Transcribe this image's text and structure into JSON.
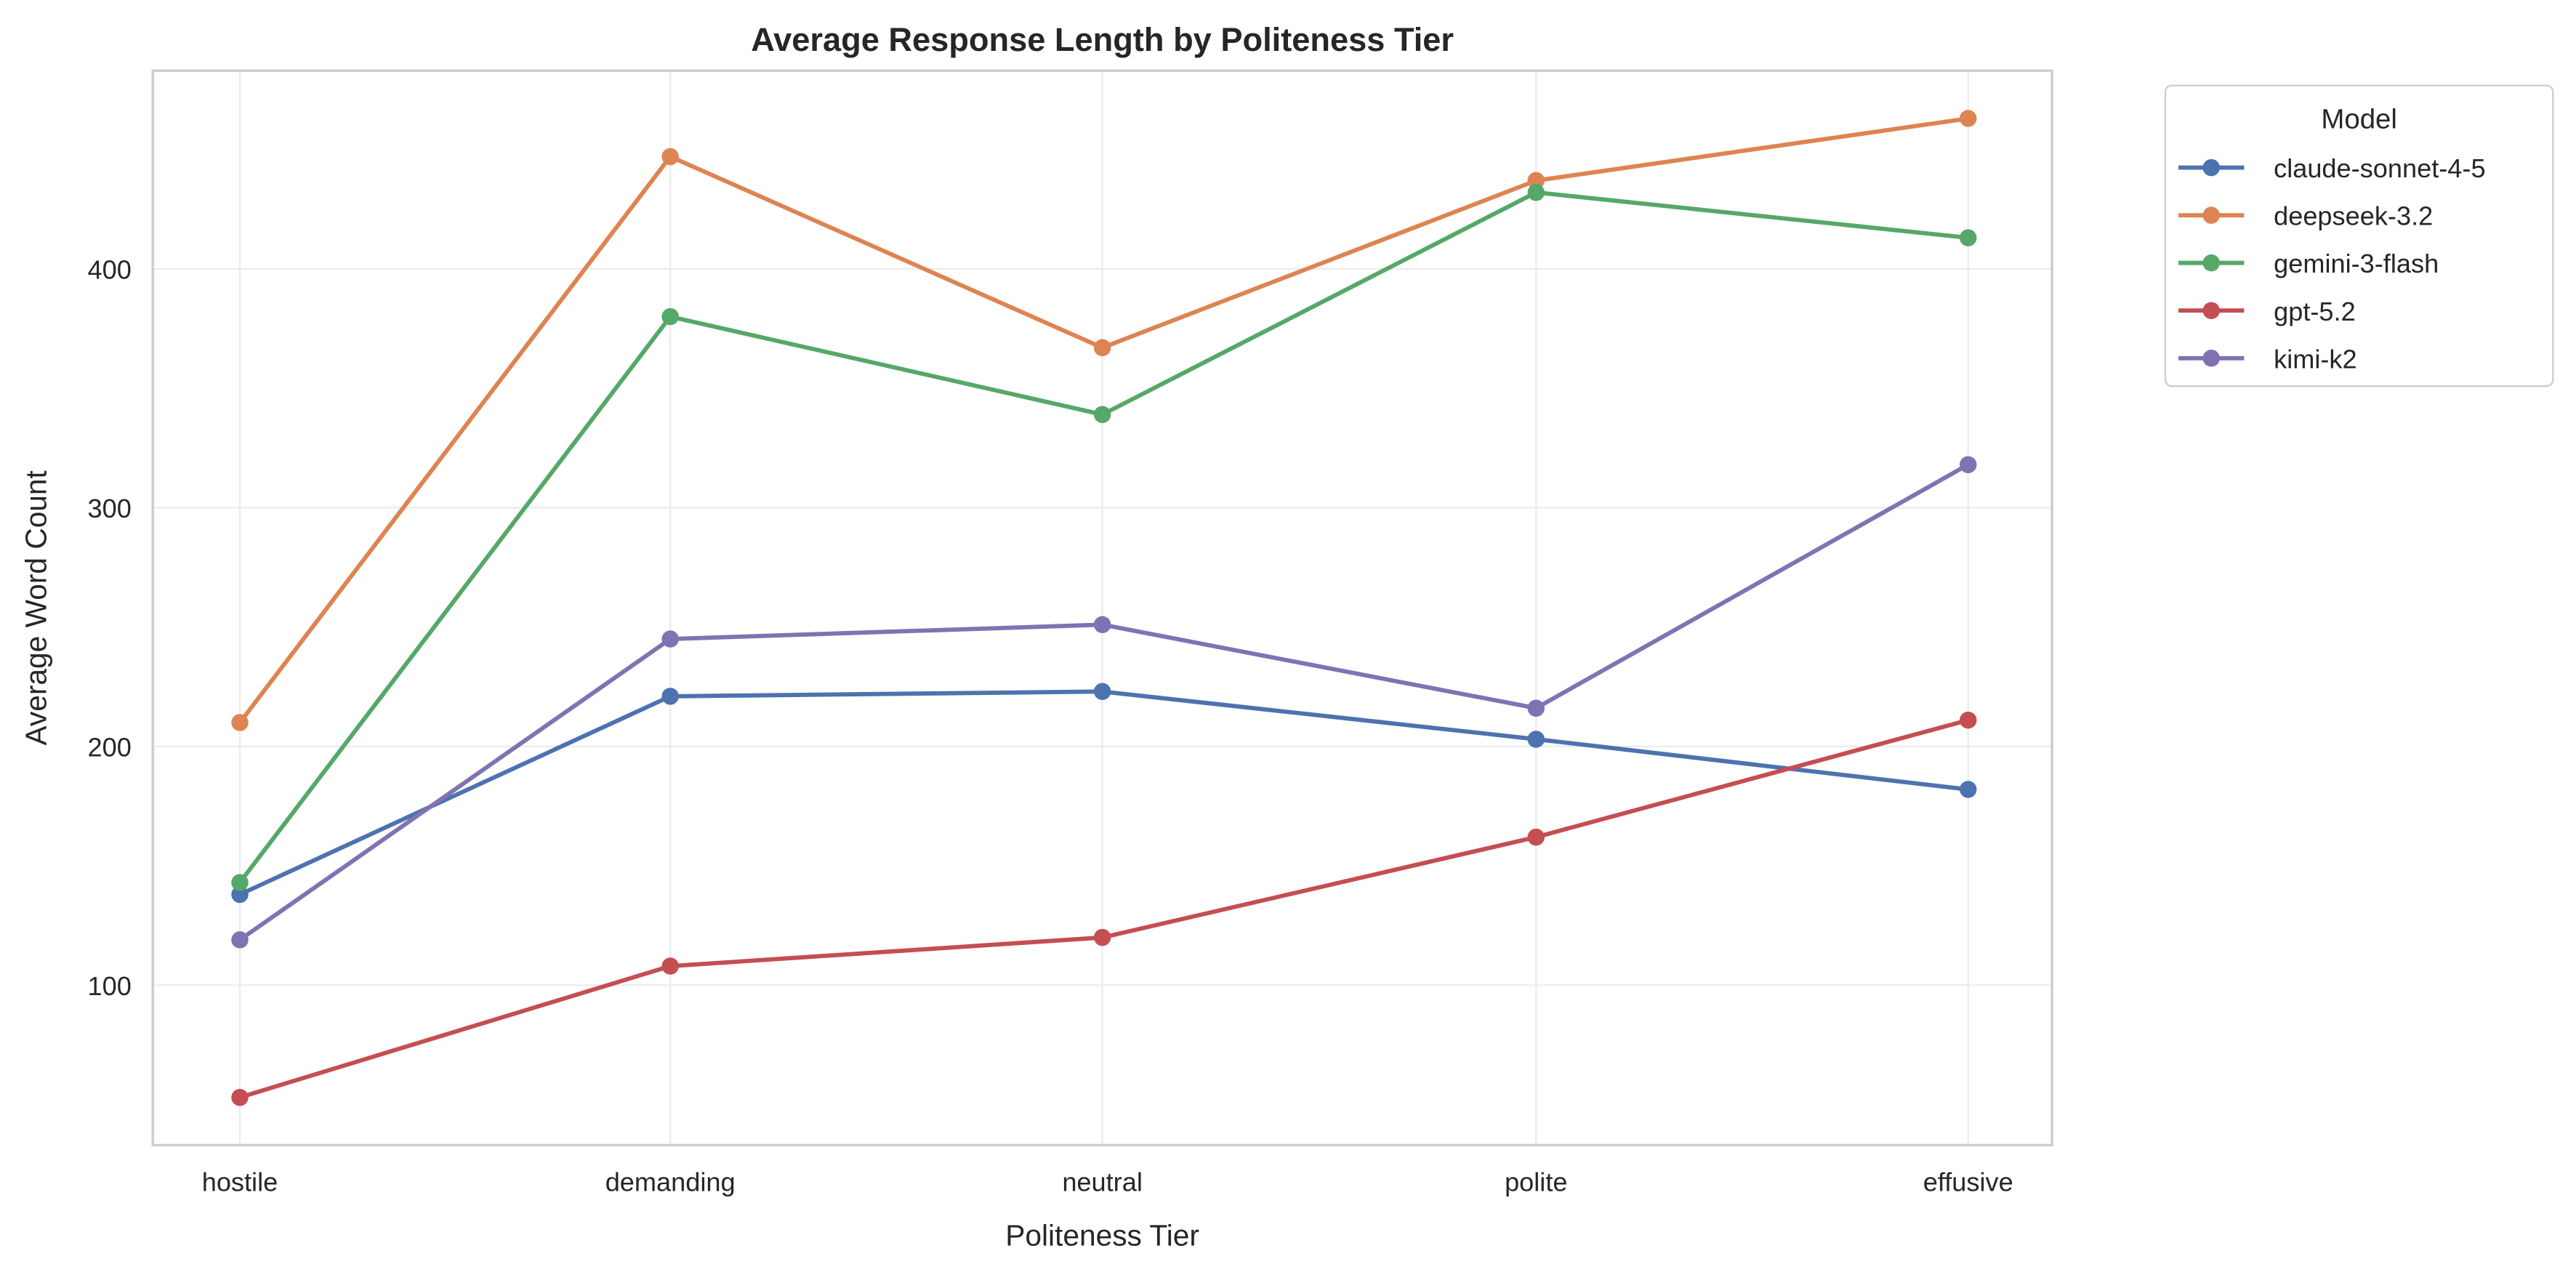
{
  "chart_data": {
    "type": "line",
    "title": "Average Response Length by Politeness Tier",
    "xlabel": "Politeness Tier",
    "ylabel": "Average Word Count",
    "categories": [
      "hostile",
      "demanding",
      "neutral",
      "polite",
      "effusive"
    ],
    "yticks": [
      100,
      200,
      300,
      400
    ],
    "ylim": [
      33,
      483
    ],
    "grid": true,
    "legend": {
      "title": "Model",
      "placement": "outside-top-right"
    },
    "series": [
      {
        "name": "claude-sonnet-4-5",
        "color": "#4c72b0",
        "values": [
          138,
          221,
          223,
          203,
          182
        ]
      },
      {
        "name": "deepseek-3.2",
        "color": "#dd8452",
        "values": [
          210,
          447,
          367,
          437,
          463
        ]
      },
      {
        "name": "gemini-3-flash",
        "color": "#55a868",
        "values": [
          143,
          380,
          339,
          432,
          413
        ]
      },
      {
        "name": "gpt-5.2",
        "color": "#c44e52",
        "values": [
          53,
          108,
          120,
          162,
          211
        ]
      },
      {
        "name": "kimi-k2",
        "color": "#8172b3",
        "values": [
          119,
          245,
          251,
          216,
          318
        ]
      }
    ]
  }
}
